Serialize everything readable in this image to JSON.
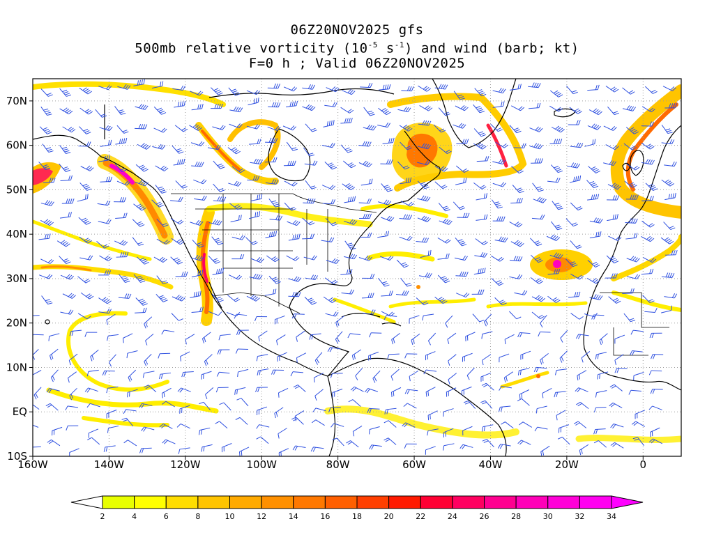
{
  "title": {
    "line1": "06Z20NOV2025 gfs",
    "line2_pre": "500mb relative vorticity (10",
    "line2_exp1": "-5",
    "line2_mid": " s",
    "line2_exp2": "-1",
    "line2_post": ") and wind (barb; kt)",
    "line3": "F=0 h ; Valid 06Z20NOV2025"
  },
  "map": {
    "lon_range": [
      -160,
      10
    ],
    "lat_range": [
      -10,
      75
    ],
    "lon_ticks": [
      {
        "value": -160,
        "label": "160W"
      },
      {
        "value": -140,
        "label": "140W"
      },
      {
        "value": -120,
        "label": "120W"
      },
      {
        "value": -100,
        "label": "100W"
      },
      {
        "value": -80,
        "label": "80W"
      },
      {
        "value": -60,
        "label": "60W"
      },
      {
        "value": -40,
        "label": "40W"
      },
      {
        "value": -20,
        "label": "20W"
      },
      {
        "value": 0,
        "label": "0"
      }
    ],
    "lat_ticks": [
      {
        "value": -10,
        "label": "10S"
      },
      {
        "value": 0,
        "label": "EQ"
      },
      {
        "value": 10,
        "label": "10N"
      },
      {
        "value": 20,
        "label": "20N"
      },
      {
        "value": 30,
        "label": "30N"
      },
      {
        "value": 40,
        "label": "40N"
      },
      {
        "value": 50,
        "label": "50N"
      },
      {
        "value": 60,
        "label": "60N"
      },
      {
        "value": 70,
        "label": "70N"
      }
    ],
    "colors": {
      "barb": "#2d4fe0",
      "grid": "#9a9a9a",
      "coast": "#000000"
    }
  },
  "colorbar": {
    "levels": [
      2,
      4,
      6,
      8,
      10,
      12,
      14,
      16,
      18,
      20,
      22,
      24,
      26,
      28,
      30,
      32,
      34
    ],
    "colors": [
      "#e8ff00",
      "#ffff00",
      "#ffdd00",
      "#ffc400",
      "#ffaa00",
      "#ff9000",
      "#ff7800",
      "#ff5f00",
      "#ff3f00",
      "#ff1a00",
      "#ff0033",
      "#ff0060",
      "#ff0090",
      "#ff00b8",
      "#ff00d8",
      "#ff00f0"
    ],
    "under_color": "#ffffff",
    "over_color": "#ff00ff"
  }
}
